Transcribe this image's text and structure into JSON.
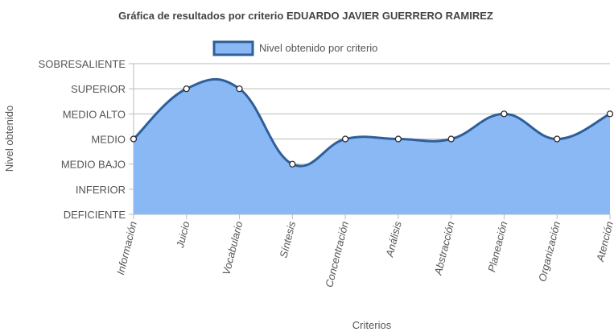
{
  "chart_data": {
    "type": "area",
    "title": "Gráfica de resultados por criterio EDUARDO JAVIER GUERRERO RAMIREZ",
    "x_label": "Criterios",
    "y_label": "Nivel obtenido",
    "categories": [
      "Información",
      "Juicio",
      "Vocabulario",
      "Síntesis",
      "Concentración",
      "Análisis",
      "Abstracción",
      "Planeación",
      "Organización",
      "Atención"
    ],
    "series": [
      {
        "name": "Nivel obtenido por criterio",
        "color": "#2f5f98",
        "fill": "#8ab8f5",
        "values": [
          3,
          5,
          5,
          2,
          3,
          3,
          3,
          4,
          3,
          4
        ]
      }
    ],
    "ylim": [
      0,
      6
    ],
    "yticks": [
      {
        "value": 0,
        "label": "DEFICIENTE"
      },
      {
        "value": 1,
        "label": "INFERIOR"
      },
      {
        "value": 2,
        "label": "MEDIO BAJO"
      },
      {
        "value": 3,
        "label": "MEDIO"
      },
      {
        "value": 4,
        "label": "MEDIO ALTO"
      },
      {
        "value": 5,
        "label": "SUPERIOR"
      },
      {
        "value": 6,
        "label": "SOBRESALIENTE"
      }
    ],
    "grid": true,
    "legend": "top"
  }
}
